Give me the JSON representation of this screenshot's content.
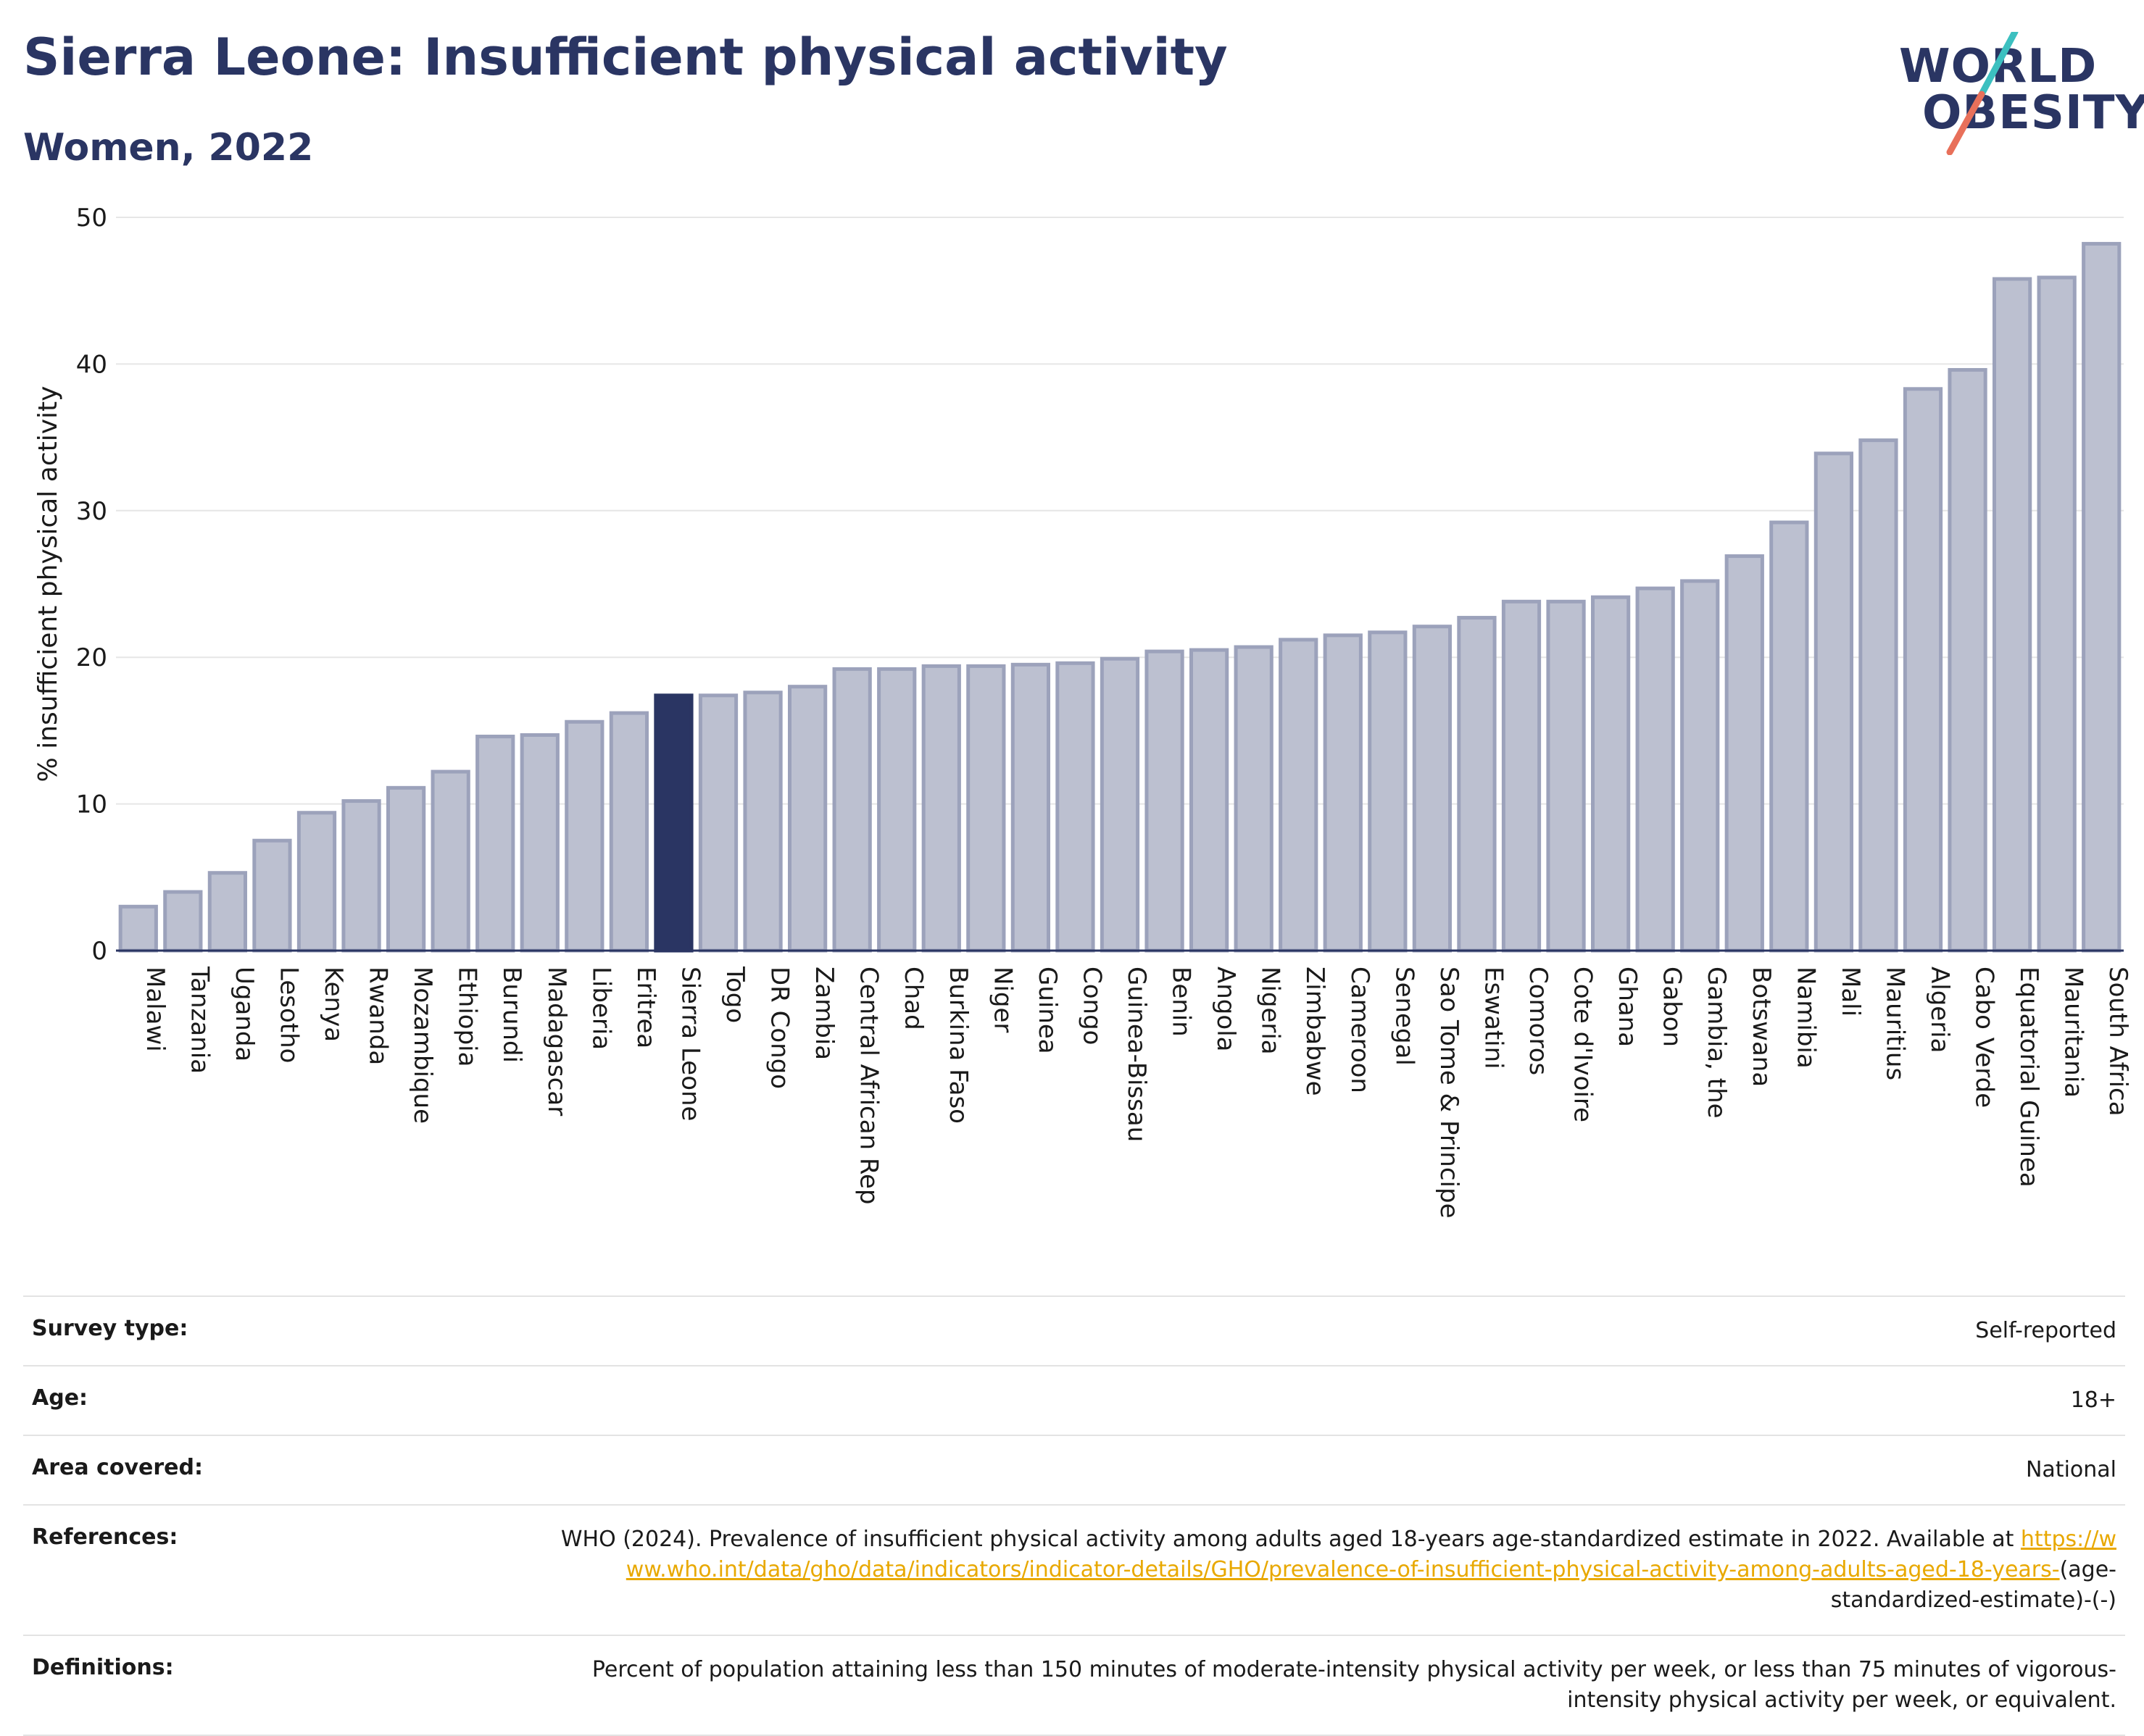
{
  "header": {
    "title": "Sierra Leone: Insufficient physical activity",
    "subtitle": "Women, 2022"
  },
  "logo": {
    "line1": "WORLD",
    "line2": "OBESITY",
    "colors": {
      "text": "#2a3563",
      "stroke_top": "#3cc0c0",
      "stroke_bottom": "#e8705a"
    }
  },
  "chart_data": {
    "type": "bar",
    "title": "Sierra Leone: Insufficient physical activity",
    "subtitle": "Women, 2022",
    "xlabel": "",
    "ylabel": "% insufficient physical activity",
    "ylim": [
      0,
      50
    ],
    "yticks": [
      0,
      10,
      20,
      30,
      40,
      50
    ],
    "grid": true,
    "legend": "none",
    "highlight": "Sierra Leone",
    "colors": {
      "bar": "#bcc0d0",
      "bar_border": "#9ca2bb",
      "highlight": "#2a3563"
    },
    "categories": [
      "Malawi",
      "Tanzania",
      "Uganda",
      "Lesotho",
      "Kenya",
      "Rwanda",
      "Mozambique",
      "Ethiopia",
      "Burundi",
      "Madagascar",
      "Liberia",
      "Eritrea",
      "Sierra Leone",
      "Togo",
      "DR Congo",
      "Zambia",
      "Central African Rep",
      "Chad",
      "Burkina Faso",
      "Niger",
      "Guinea",
      "Congo",
      "Guinea-Bissau",
      "Benin",
      "Angola",
      "Nigeria",
      "Zimbabwe",
      "Cameroon",
      "Senegal",
      "Sao Tome & Principe",
      "Eswatini",
      "Comoros",
      "Cote d'Ivoire",
      "Ghana",
      "Gabon",
      "Gambia, the",
      "Botswana",
      "Namibia",
      "Mali",
      "Mauritius",
      "Algeria",
      "Cabo Verde",
      "Equatorial Guinea",
      "Mauritania",
      "South Africa"
    ],
    "values": [
      3.0,
      4.0,
      5.3,
      7.5,
      9.4,
      10.2,
      11.1,
      12.2,
      14.6,
      14.7,
      15.6,
      16.2,
      17.4,
      17.4,
      17.6,
      18.0,
      19.2,
      19.2,
      19.4,
      19.4,
      19.5,
      19.6,
      19.9,
      20.4,
      20.5,
      20.7,
      21.2,
      21.5,
      21.7,
      22.1,
      22.7,
      23.8,
      23.8,
      24.1,
      24.7,
      25.2,
      26.9,
      29.2,
      33.9,
      34.8,
      38.3,
      39.6,
      45.8,
      45.9,
      48.2
    ]
  },
  "info": {
    "survey_type_label": "Survey type:",
    "survey_type_value": "Self-reported",
    "age_label": "Age:",
    "age_value": "18+",
    "area_label": "Area covered:",
    "area_value": "National",
    "references_label": "References:",
    "references_text": "WHO (2024). Prevalence of insufficient physical activity among adults aged 18-years age-standardized estimate in 2022. Available at",
    "references_link": "https://www.who.int/data/gho/data/indicators/indicator-details/GHO/prevalence-of-insufficient-physical-activity-among-adults-aged-18-years-",
    "references_suffix": "(age-standardized-estimate)-(-)",
    "definitions_label": "Definitions:",
    "definitions_value": "Percent of population attaining less than 150 minutes of moderate-intensity physical activity per week, or less than 75 minutes of vigorous-intensity physical activity per week, or equivalent."
  }
}
